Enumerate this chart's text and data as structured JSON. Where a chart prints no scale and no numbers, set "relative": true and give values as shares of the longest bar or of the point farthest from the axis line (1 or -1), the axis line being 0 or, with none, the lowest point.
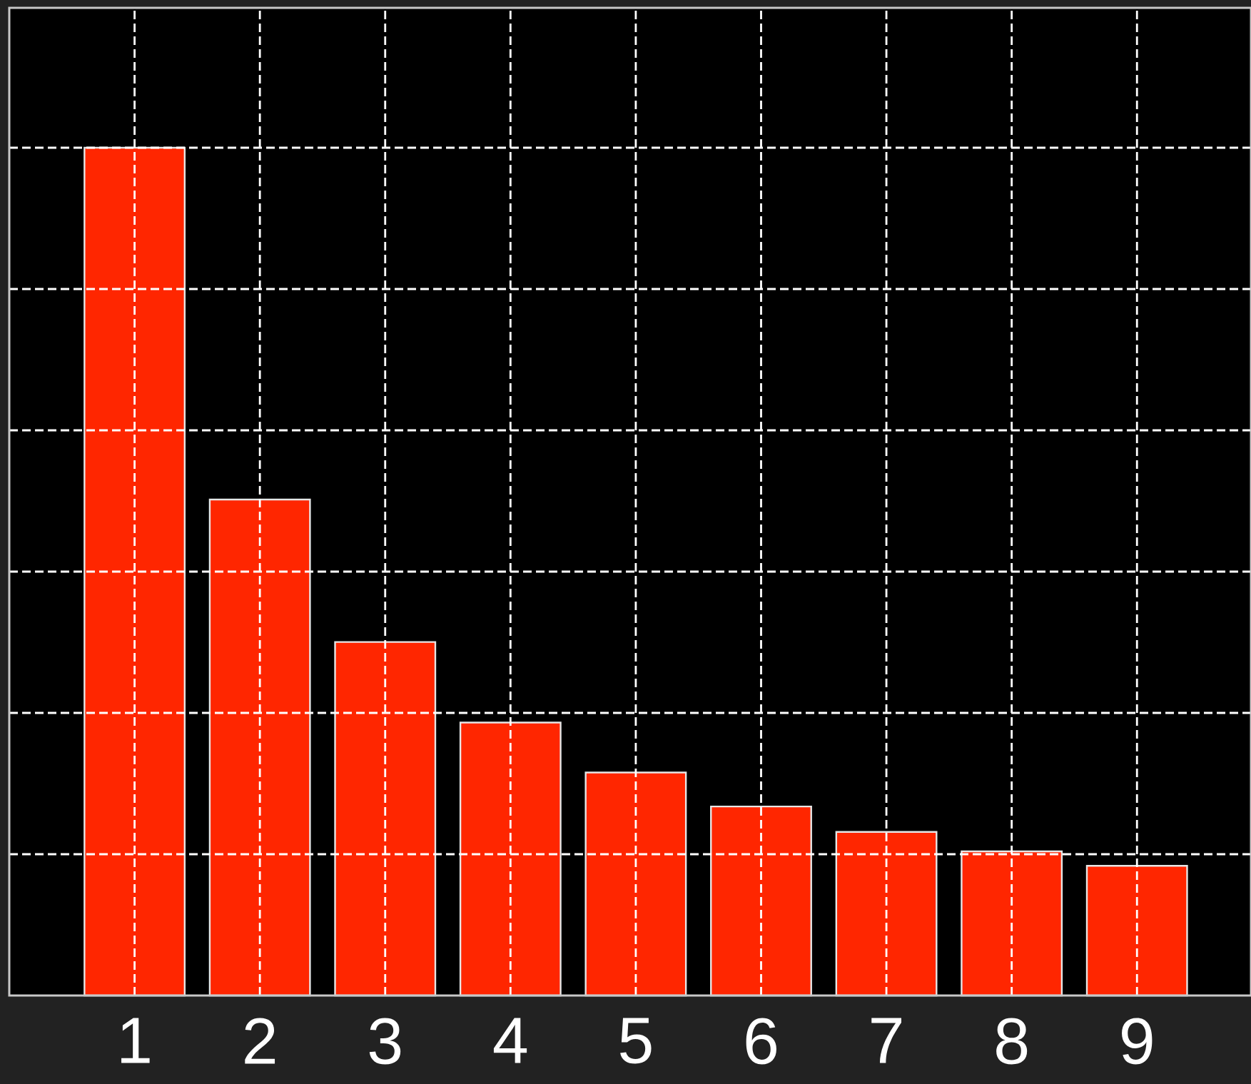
{
  "chart_data": {
    "type": "bar",
    "relative": true,
    "categories": [
      "1",
      "2",
      "3",
      "4",
      "5",
      "6",
      "7",
      "8",
      "9"
    ],
    "values": [
      1,
      0.585,
      0.417,
      0.322,
      0.263,
      0.223,
      0.193,
      0.17,
      0.153
    ],
    "color": "#ff2600",
    "grid": true
  }
}
